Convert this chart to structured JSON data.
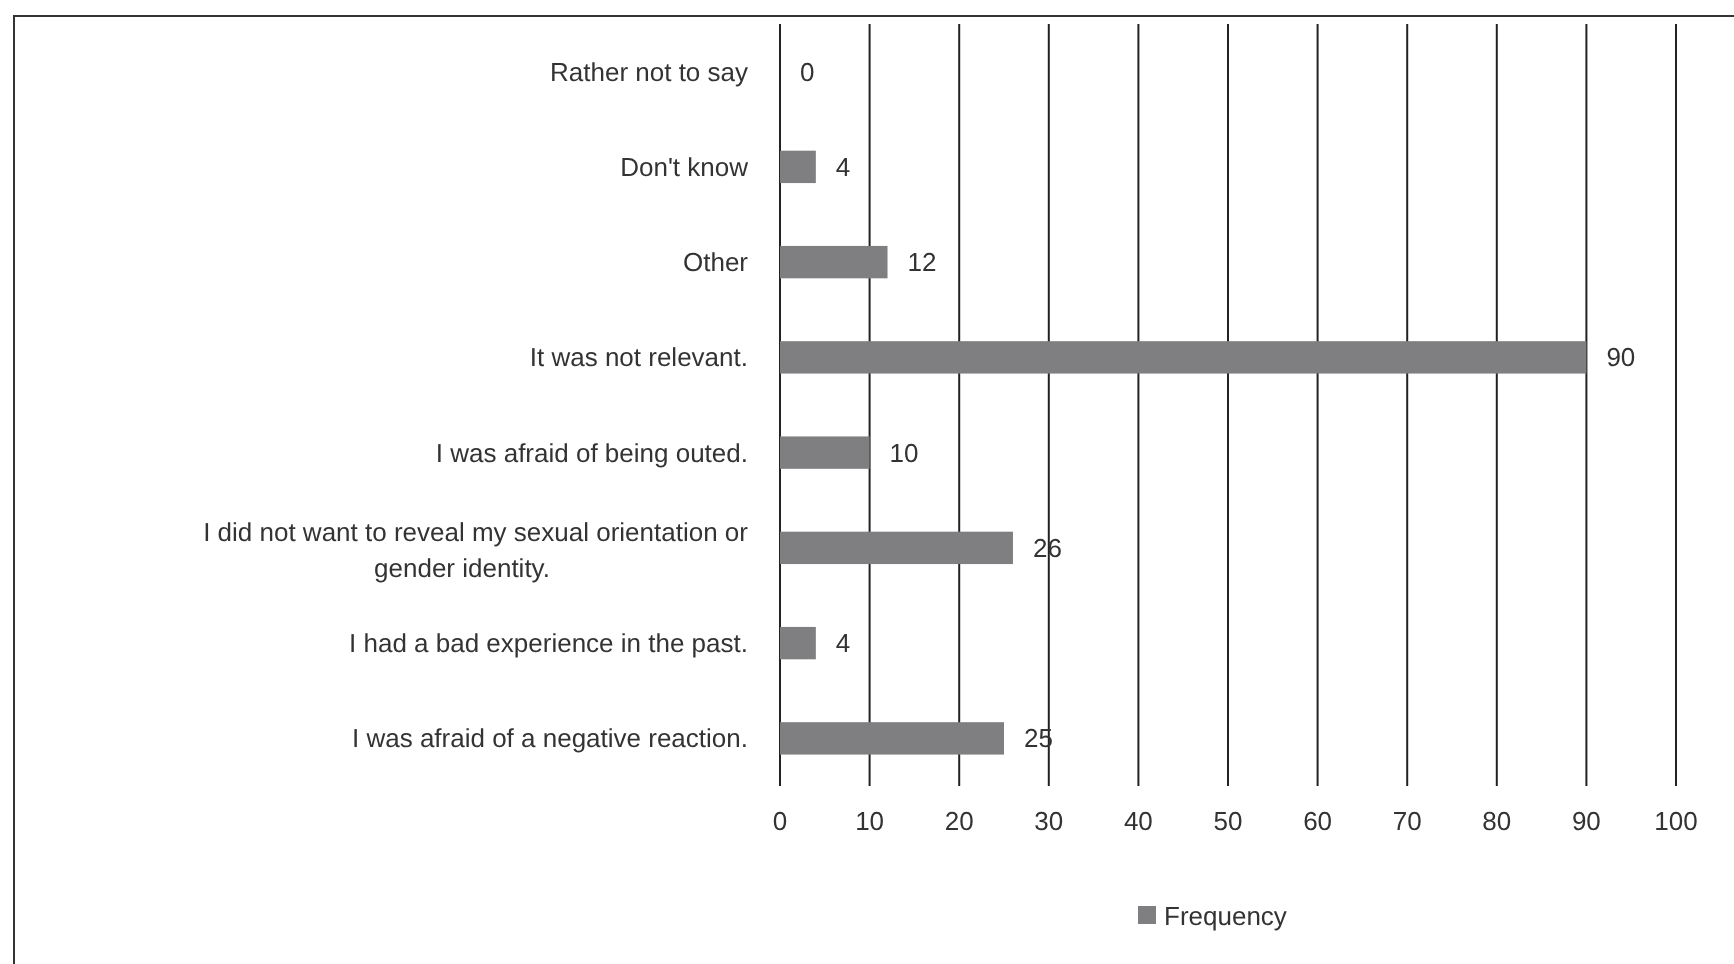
{
  "chart_data": {
    "type": "bar",
    "orientation": "horizontal",
    "categories": [
      "Rather not to say",
      "Don't know",
      "Other",
      "It was not relevant.",
      "I was afraid of being outed.",
      "I did not want to reveal my sexual orientation or gender identity.",
      "I had a bad experience in the past.",
      "I was afraid of a negative reaction."
    ],
    "series": [
      {
        "name": "Frequency",
        "color": "#7f7f81",
        "values": [
          0,
          4,
          12,
          90,
          10,
          26,
          4,
          25
        ]
      }
    ],
    "xlim": [
      0,
      100
    ],
    "xticks": [
      0,
      10,
      20,
      30,
      40,
      50,
      60,
      70,
      80,
      90,
      100
    ],
    "grid": "x",
    "legend": "bottom",
    "data_labels": true
  }
}
